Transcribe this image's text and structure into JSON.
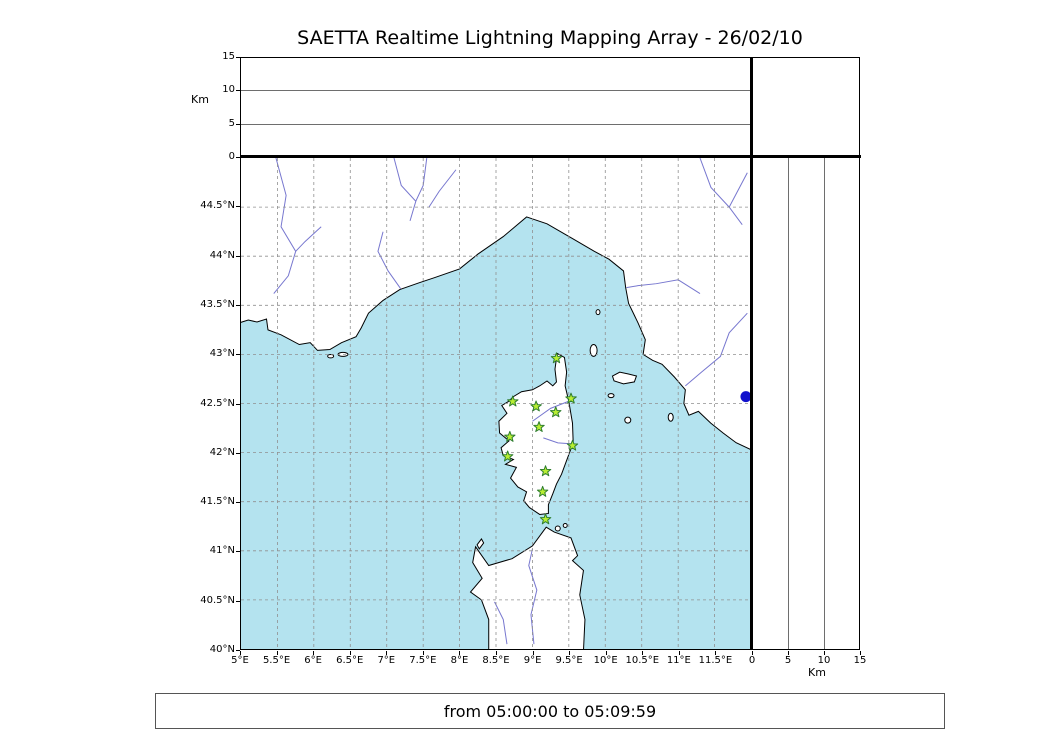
{
  "title": "SAETTA Realtime Lightning Mapping Array - 26/02/10",
  "footer": {
    "text": "from 05:00:00 to 05:09:59"
  },
  "colors": {
    "sea": "#b4e3ef",
    "land": "#ffffff",
    "coast": "#000000",
    "river": "#7777cf",
    "grid": "#909090",
    "station_fill": "#b8ee33",
    "station_stroke": "#2e7d2e",
    "lake": "#1111cc",
    "frame": "#000000"
  },
  "map": {
    "lon_min": 5,
    "lon_max": 12,
    "lat_min": 40,
    "lat_max": 45,
    "x_ticks": [
      {
        "value": 5,
        "label": "5°E"
      },
      {
        "value": 5.5,
        "label": "5.5°E"
      },
      {
        "value": 6,
        "label": "6°E"
      },
      {
        "value": 6.5,
        "label": "6.5°E"
      },
      {
        "value": 7,
        "label": "7°E"
      },
      {
        "value": 7.5,
        "label": "7.5°E"
      },
      {
        "value": 8,
        "label": "8°E"
      },
      {
        "value": 8.5,
        "label": "8.5°E"
      },
      {
        "value": 9,
        "label": "9°E"
      },
      {
        "value": 9.5,
        "label": "9.5°E"
      },
      {
        "value": 10,
        "label": "10°E"
      },
      {
        "value": 10.5,
        "label": "10.5°E"
      },
      {
        "value": 11,
        "label": "11°E"
      },
      {
        "value": 11.5,
        "label": "11.5°E"
      }
    ],
    "y_ticks": [
      {
        "value": 44.5,
        "label": "44.5°N"
      },
      {
        "value": 44,
        "label": "44°N"
      },
      {
        "value": 43.5,
        "label": "43.5°N"
      },
      {
        "value": 43,
        "label": "43°N"
      },
      {
        "value": 42.5,
        "label": "42.5°N"
      },
      {
        "value": 42,
        "label": "42°N"
      },
      {
        "value": 41.5,
        "label": "41.5°N"
      },
      {
        "value": 41,
        "label": "41°N"
      },
      {
        "value": 40.5,
        "label": "40.5°N"
      },
      {
        "value": 40,
        "label": "40°N"
      }
    ]
  },
  "altitude_axis": {
    "label": "Km",
    "max": 15,
    "ticks": [
      {
        "value": 0,
        "label": "0"
      },
      {
        "value": 5,
        "label": "5"
      },
      {
        "value": 10,
        "label": "10"
      },
      {
        "value": 15,
        "label": "15"
      }
    ],
    "gridlines": [
      5,
      10
    ]
  },
  "chart_data": {
    "type": "composite",
    "title": "SAETTA Realtime Lightning Mapping Array - 26/02/10",
    "time_window": "from 05:00:00 to 05:09:59",
    "map_panel": {
      "type": "map",
      "lon_range": [
        5,
        12
      ],
      "lat_range": [
        40,
        45
      ],
      "grid_step_deg": 0.5,
      "grid_style": "dashed"
    },
    "altitude_longitude_panel": {
      "type": "scatter",
      "axis_label": "Km",
      "ylim": [
        0,
        15
      ],
      "gridlines_km": [
        5,
        10
      ],
      "points": []
    },
    "altitude_latitude_panel": {
      "type": "scatter",
      "axis_label": "Km",
      "xlim": [
        0,
        15
      ],
      "gridlines_km": [
        5,
        10
      ],
      "points": []
    },
    "stations": [
      {
        "lon": 9.33,
        "lat": 42.96
      },
      {
        "lon": 8.73,
        "lat": 42.52
      },
      {
        "lon": 9.05,
        "lat": 42.47
      },
      {
        "lon": 9.53,
        "lat": 42.55
      },
      {
        "lon": 9.32,
        "lat": 42.41
      },
      {
        "lon": 9.09,
        "lat": 42.26
      },
      {
        "lon": 8.69,
        "lat": 42.16
      },
      {
        "lon": 9.55,
        "lat": 42.07
      },
      {
        "lon": 8.66,
        "lat": 41.96
      },
      {
        "lon": 9.18,
        "lat": 41.81
      },
      {
        "lon": 9.14,
        "lat": 41.6
      },
      {
        "lon": 9.18,
        "lat": 41.32
      }
    ],
    "lakes": [
      {
        "lon": 11.93,
        "lat": 42.57
      }
    ]
  }
}
